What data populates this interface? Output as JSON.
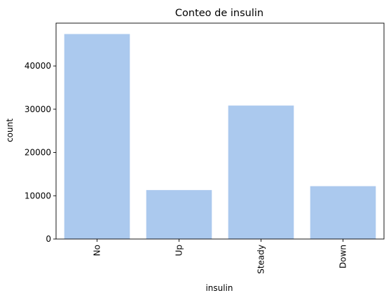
{
  "chart_data": {
    "type": "bar",
    "title": "Conteo de insulin",
    "xlabel": "insulin",
    "ylabel": "count",
    "categories": [
      "No",
      "Up",
      "Steady",
      "Down"
    ],
    "values": [
      47383,
      11316,
      30849,
      12218
    ],
    "yticks": [
      0,
      10000,
      20000,
      30000,
      40000
    ],
    "ylim": [
      0,
      49900
    ],
    "grid": false,
    "legend": "none",
    "bar_color": "#abc9ee"
  }
}
